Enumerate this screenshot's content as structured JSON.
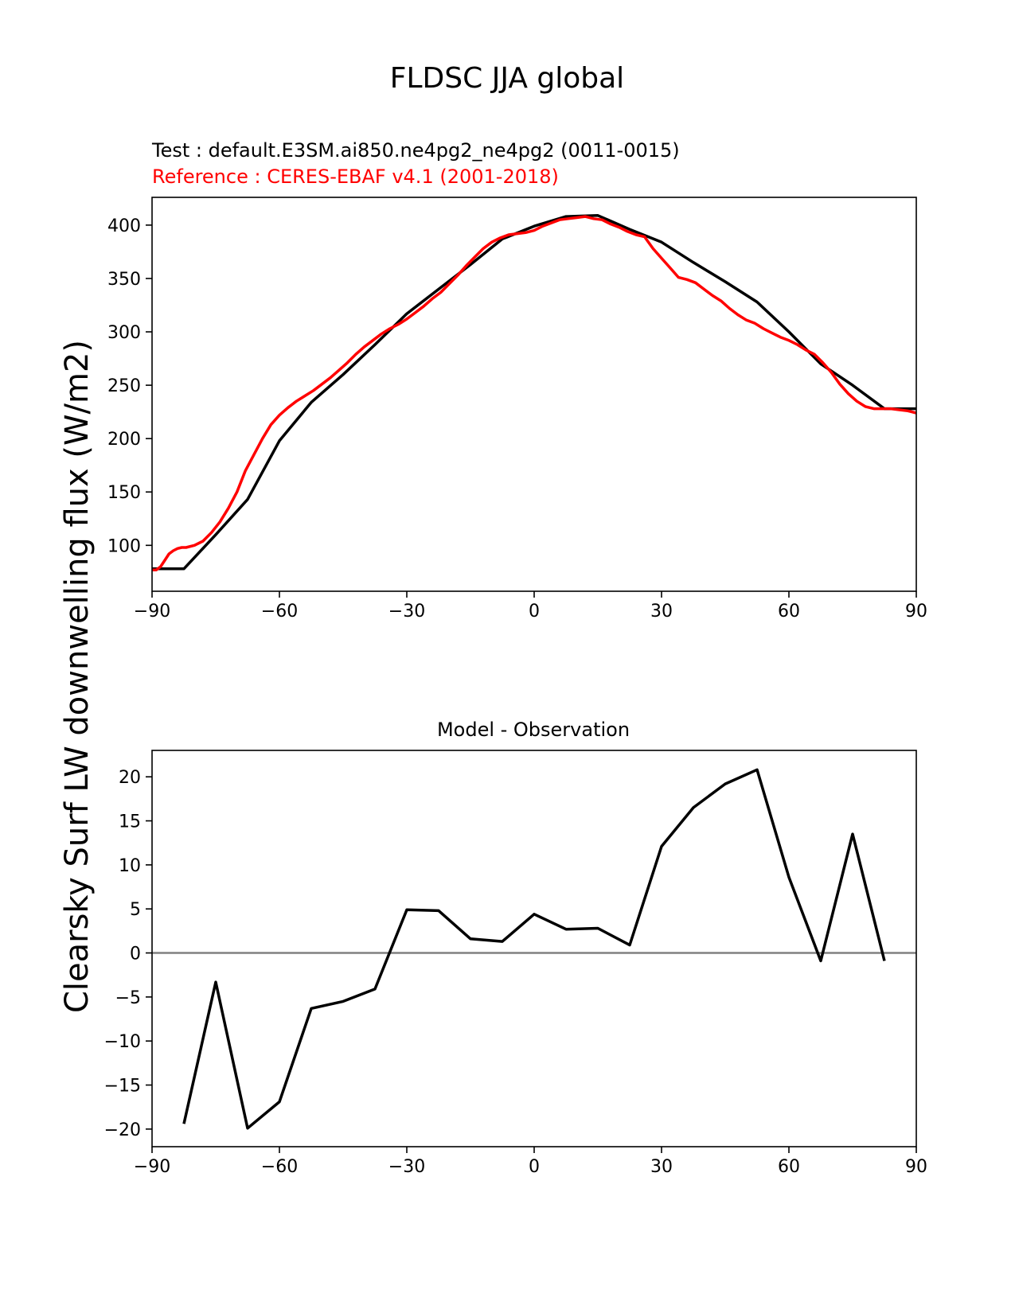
{
  "figure": {
    "title": "FLDSC JJA global",
    "ylabel": "Clearsky Surf LW downwelling flux (W/m2)"
  },
  "chart_data": [
    {
      "type": "line",
      "test_label": "Test : default.E3SM.ai850.ne4pg2_ne4pg2 (0011-0015)",
      "reference_label": "Reference : CERES-EBAF v4.1 (2001-2018)",
      "xlim": [
        -90,
        90
      ],
      "ylim": [
        57,
        426
      ],
      "xticks": [
        -90,
        -60,
        -30,
        0,
        30,
        60,
        90
      ],
      "yticks": [
        100,
        150,
        200,
        250,
        300,
        350,
        400
      ],
      "series": [
        {
          "name": "Test",
          "color": "#000000",
          "x": [
            -90,
            -82.5,
            -75,
            -67.5,
            -60,
            -52.5,
            -45,
            -37.5,
            -30,
            -22.5,
            -15,
            -7.5,
            0,
            7.5,
            15,
            22.5,
            30,
            37.5,
            45,
            52.5,
            60,
            67.5,
            75,
            82.5,
            90
          ],
          "y": [
            78,
            78,
            110,
            143,
            198,
            234,
            260,
            288,
            317,
            340,
            363,
            387,
            399,
            408,
            409,
            396,
            384,
            365,
            347,
            328,
            300,
            270,
            250,
            228,
            228
          ]
        },
        {
          "name": "Reference",
          "color": "#ff0000",
          "x": [
            -90,
            -89,
            -88,
            -87,
            -86,
            -85,
            -84,
            -83,
            -82,
            -80,
            -78,
            -76,
            -74,
            -72,
            -70,
            -68,
            -66,
            -64,
            -62,
            -60,
            -58,
            -56,
            -54,
            -52,
            -50,
            -48,
            -46,
            -44,
            -42,
            -40,
            -38,
            -36,
            -34,
            -32,
            -30,
            -28,
            -26,
            -24,
            -22,
            -20,
            -18,
            -16,
            -14,
            -12,
            -10,
            -8,
            -6,
            -4,
            -2,
            0,
            2,
            4,
            6,
            8,
            10,
            12,
            14,
            16,
            18,
            20,
            22,
            24,
            26,
            28,
            30,
            32,
            34,
            36,
            38,
            40,
            42,
            44,
            46,
            48,
            50,
            52,
            54,
            56,
            58,
            60,
            62,
            64,
            66,
            68,
            70,
            72,
            74,
            76,
            78,
            80,
            82,
            84,
            86,
            88,
            90
          ],
          "y": [
            77,
            77,
            80,
            86,
            92,
            95,
            97,
            98,
            98,
            100,
            104,
            112,
            122,
            135,
            150,
            170,
            185,
            200,
            213,
            222,
            229,
            235,
            240,
            245,
            251,
            257,
            264,
            271,
            279,
            286,
            292,
            298,
            303,
            307,
            312,
            318,
            324,
            331,
            337,
            345,
            353,
            362,
            370,
            378,
            384,
            388,
            391,
            392,
            393,
            395,
            399,
            402,
            405,
            406,
            407,
            408,
            406,
            405,
            401,
            398,
            394,
            391,
            389,
            378,
            369,
            360,
            351,
            349,
            346,
            340,
            334,
            329,
            322,
            316,
            311,
            308,
            303,
            299,
            295,
            292,
            288,
            283,
            279,
            271,
            262,
            251,
            242,
            235,
            230,
            228,
            228,
            228,
            227,
            226,
            224
          ]
        }
      ]
    },
    {
      "type": "line",
      "title": "Model - Observation",
      "xlim": [
        -90,
        90
      ],
      "ylim": [
        -22,
        23
      ],
      "xticks": [
        -90,
        -60,
        -30,
        0,
        30,
        60,
        90
      ],
      "yticks": [
        -20,
        -15,
        -10,
        -5,
        0,
        5,
        10,
        15,
        20
      ],
      "zero_line_color": "#808080",
      "series": [
        {
          "name": "Model - Observation",
          "color": "#000000",
          "x": [
            -82.5,
            -75,
            -67.5,
            -60,
            -52.5,
            -45,
            -37.5,
            -30,
            -22.5,
            -15,
            -7.5,
            0,
            7.5,
            15,
            22.5,
            30,
            37.5,
            45,
            52.5,
            60,
            67.5,
            75,
            82.5
          ],
          "y": [
            -19.4,
            -3.3,
            -19.9,
            -16.9,
            -6.3,
            -5.5,
            -4.1,
            4.9,
            4.8,
            1.6,
            1.3,
            4.4,
            2.7,
            2.8,
            0.9,
            12.1,
            16.5,
            19.2,
            20.8,
            8.6,
            -0.9,
            13.5,
            -0.9
          ]
        }
      ]
    }
  ]
}
